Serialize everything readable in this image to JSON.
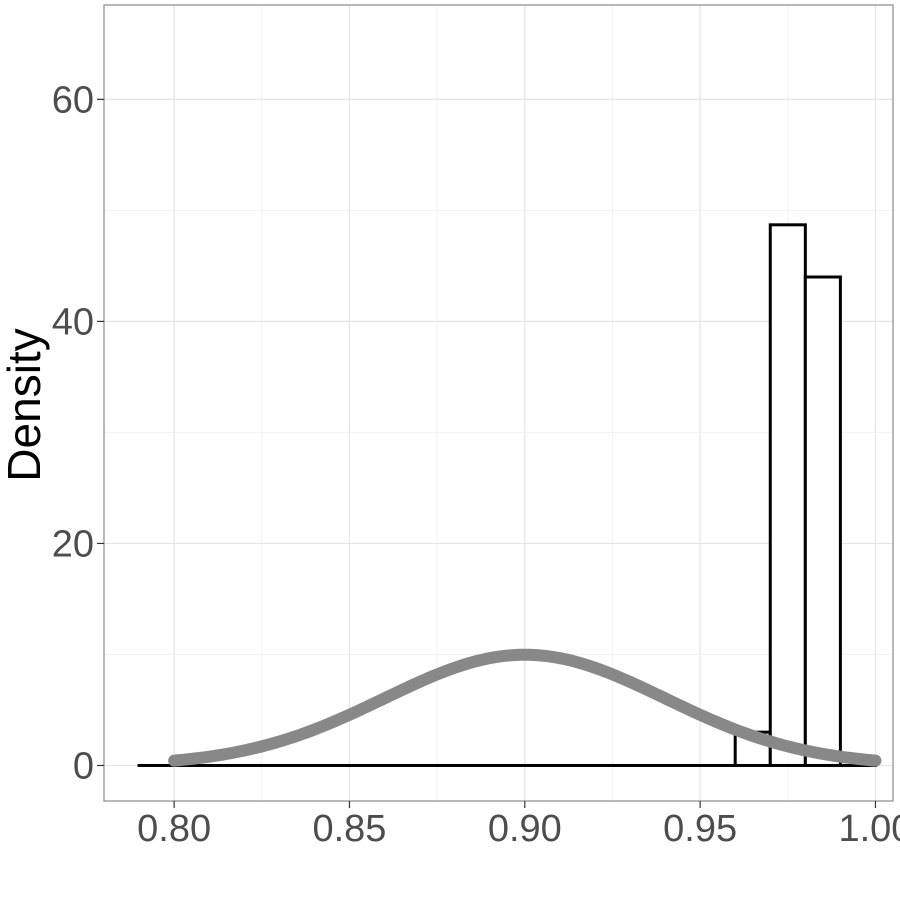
{
  "chart_data": {
    "type": "bar",
    "title": "",
    "xlabel": "",
    "ylabel": "Density",
    "xlim": [
      0.78,
      1.005
    ],
    "ylim": [
      -3.2,
      68.5
    ],
    "grid": true,
    "x_ticks": [
      {
        "value": 0.8,
        "label": "0.80"
      },
      {
        "value": 0.85,
        "label": "0.85"
      },
      {
        "value": 0.9,
        "label": "0.90"
      },
      {
        "value": 0.95,
        "label": "0.95"
      },
      {
        "value": 1.0,
        "label": "1.00"
      }
    ],
    "y_ticks": [
      {
        "value": 0,
        "label": "0"
      },
      {
        "value": 20,
        "label": "20"
      },
      {
        "value": 40,
        "label": "40"
      },
      {
        "value": 60,
        "label": "60"
      }
    ],
    "histogram": {
      "bins": [
        {
          "x0": 0.79,
          "x1": 0.96,
          "density": 0
        },
        {
          "x0": 0.96,
          "x1": 0.97,
          "density": 3
        },
        {
          "x0": 0.97,
          "x1": 0.98,
          "density": 48.7
        },
        {
          "x0": 0.98,
          "x1": 0.99,
          "density": 44
        },
        {
          "x0": 0.99,
          "x1": 1.0,
          "density": 0
        }
      ],
      "fill": "#ffffff",
      "stroke": "#000000"
    },
    "density_curve": {
      "distribution": "normal",
      "mean": 0.9,
      "sd": 0.04,
      "x_range": [
        0.8,
        1.0
      ],
      "color": "#888888"
    }
  }
}
